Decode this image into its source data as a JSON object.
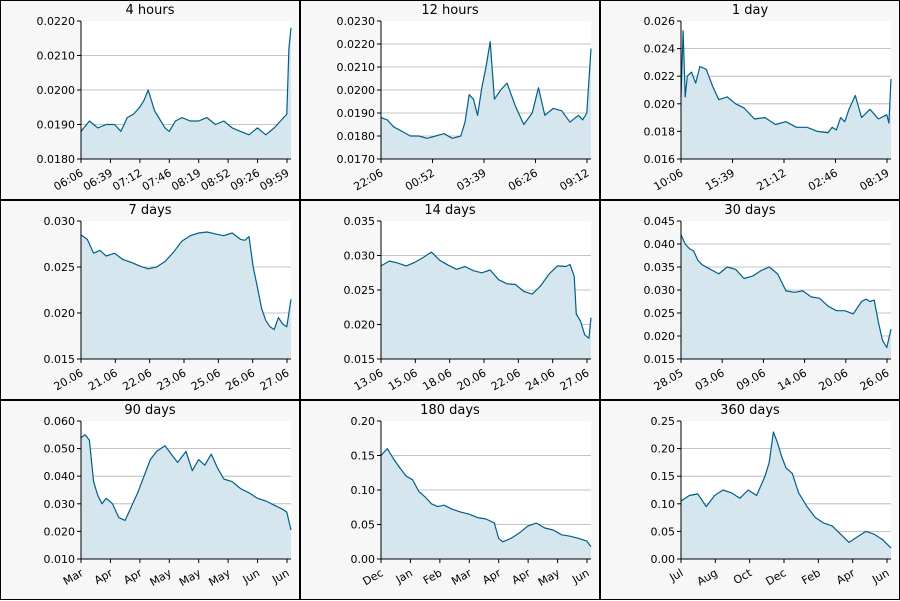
{
  "colors": {
    "line": "#005f87",
    "fill": "#d6e6ee",
    "grid": "#b0b0b0",
    "plot_bg": "#ffffff",
    "panel_bg": "#f7f7f7"
  },
  "chart_data": [
    {
      "type": "area",
      "title": "4 hours",
      "ylim": [
        0.018,
        0.022
      ],
      "yticks": [
        "0.0180",
        "0.0190",
        "0.0200",
        "0.0210",
        "0.0220"
      ],
      "xticks": [
        "06:06",
        "06:39",
        "07:12",
        "07:46",
        "08:19",
        "08:52",
        "09:26",
        "09:59"
      ],
      "x": [
        0,
        4,
        8,
        12,
        16,
        19,
        22,
        25,
        28,
        30,
        32,
        35,
        38,
        40,
        42,
        45,
        48,
        52,
        56,
        60,
        64,
        68,
        72,
        76,
        80,
        84,
        88,
        92,
        95,
        98,
        99,
        100
      ],
      "y": [
        0.0188,
        0.0191,
        0.0189,
        0.019,
        0.019,
        0.0188,
        0.0192,
        0.0193,
        0.0195,
        0.0197,
        0.02,
        0.0194,
        0.0191,
        0.0189,
        0.0188,
        0.0191,
        0.0192,
        0.0191,
        0.0191,
        0.0192,
        0.019,
        0.0191,
        0.0189,
        0.0188,
        0.0187,
        0.0189,
        0.0187,
        0.0189,
        0.0191,
        0.0193,
        0.0212,
        0.0218
      ]
    },
    {
      "type": "area",
      "title": "12 hours",
      "ylim": [
        0.017,
        0.023
      ],
      "yticks": [
        "0.0170",
        "0.0180",
        "0.0190",
        "0.0200",
        "0.0210",
        "0.0220",
        "0.0230"
      ],
      "xticks": [
        "22:06",
        "00:52",
        "03:39",
        "06:26",
        "09:12"
      ],
      "x": [
        0,
        3,
        6,
        10,
        14,
        18,
        22,
        26,
        30,
        34,
        38,
        40,
        42,
        44,
        46,
        48,
        50,
        52,
        54,
        57,
        60,
        64,
        68,
        72,
        75,
        78,
        82,
        86,
        90,
        94,
        96,
        98,
        100
      ],
      "y": [
        0.0188,
        0.0187,
        0.0184,
        0.0182,
        0.018,
        0.018,
        0.0179,
        0.018,
        0.0181,
        0.0179,
        0.018,
        0.0186,
        0.0198,
        0.0196,
        0.0189,
        0.0201,
        0.021,
        0.0221,
        0.0196,
        0.02,
        0.0203,
        0.0193,
        0.0185,
        0.019,
        0.0201,
        0.0189,
        0.0192,
        0.0191,
        0.0186,
        0.0189,
        0.0187,
        0.019,
        0.0218
      ]
    },
    {
      "type": "area",
      "title": "1 day",
      "ylim": [
        0.016,
        0.026
      ],
      "yticks": [
        "0.016",
        "0.018",
        "0.020",
        "0.022",
        "0.024",
        "0.026"
      ],
      "xticks": [
        "10:06",
        "15:39",
        "21:12",
        "02:46",
        "08:19"
      ],
      "x": [
        0,
        1,
        2,
        3,
        5,
        7,
        9,
        12,
        15,
        18,
        22,
        26,
        30,
        35,
        40,
        45,
        50,
        55,
        60,
        65,
        70,
        72,
        74,
        76,
        78,
        80,
        83,
        86,
        90,
        94,
        98,
        99,
        100
      ],
      "y": [
        0.0205,
        0.0253,
        0.0205,
        0.022,
        0.0223,
        0.0215,
        0.0227,
        0.0225,
        0.0213,
        0.0203,
        0.0205,
        0.02,
        0.0197,
        0.0189,
        0.019,
        0.0185,
        0.0187,
        0.0183,
        0.0183,
        0.018,
        0.0179,
        0.0183,
        0.0181,
        0.019,
        0.0187,
        0.0196,
        0.0206,
        0.019,
        0.0196,
        0.0189,
        0.0192,
        0.0186,
        0.0218
      ]
    },
    {
      "type": "area",
      "title": "7 days",
      "ylim": [
        0.015,
        0.03
      ],
      "yticks": [
        "0.015",
        "0.020",
        "0.025",
        "0.030"
      ],
      "xticks": [
        "20.06",
        "21.06",
        "22.06",
        "23.06",
        "25.06",
        "26.06",
        "27.06"
      ],
      "x": [
        0,
        3,
        6,
        9,
        12,
        16,
        20,
        24,
        28,
        32,
        36,
        40,
        44,
        48,
        52,
        56,
        60,
        64,
        68,
        72,
        76,
        78,
        80,
        82,
        84,
        86,
        88,
        90,
        92,
        94,
        96,
        98,
        100
      ],
      "y": [
        0.0285,
        0.028,
        0.0265,
        0.0268,
        0.0262,
        0.0265,
        0.0258,
        0.0255,
        0.0251,
        0.0248,
        0.025,
        0.0256,
        0.0266,
        0.0278,
        0.0284,
        0.0287,
        0.0288,
        0.0286,
        0.0284,
        0.0287,
        0.028,
        0.0279,
        0.0283,
        0.025,
        0.0228,
        0.0205,
        0.0192,
        0.0185,
        0.0182,
        0.0195,
        0.0188,
        0.0185,
        0.0215
      ]
    },
    {
      "type": "area",
      "title": "14 days",
      "ylim": [
        0.015,
        0.035
      ],
      "yticks": [
        "0.015",
        "0.020",
        "0.025",
        "0.030",
        "0.035"
      ],
      "xticks": [
        "13.06",
        "15.06",
        "18.06",
        "20.06",
        "22.06",
        "24.06",
        "27.06"
      ],
      "x": [
        0,
        4,
        8,
        12,
        16,
        20,
        24,
        28,
        32,
        36,
        40,
        44,
        48,
        52,
        56,
        60,
        64,
        68,
        72,
        76,
        80,
        84,
        88,
        90,
        92,
        93,
        95,
        97,
        99,
        100
      ],
      "y": [
        0.0285,
        0.0292,
        0.0289,
        0.0285,
        0.029,
        0.0297,
        0.0305,
        0.0293,
        0.0286,
        0.028,
        0.0284,
        0.0278,
        0.0275,
        0.0279,
        0.0265,
        0.0259,
        0.0258,
        0.0248,
        0.0244,
        0.0256,
        0.0273,
        0.0285,
        0.0284,
        0.0287,
        0.027,
        0.0215,
        0.0205,
        0.0185,
        0.018,
        0.021
      ]
    },
    {
      "type": "area",
      "title": "30 days",
      "ylim": [
        0.015,
        0.045
      ],
      "yticks": [
        "0.015",
        "0.020",
        "0.025",
        "0.030",
        "0.035",
        "0.040",
        "0.045"
      ],
      "xticks": [
        "28.05",
        "03.06",
        "09.06",
        "14.06",
        "20.06",
        "26.06"
      ],
      "x": [
        0,
        2,
        4,
        6,
        8,
        10,
        14,
        18,
        22,
        26,
        30,
        34,
        38,
        42,
        46,
        50,
        54,
        58,
        62,
        66,
        70,
        74,
        78,
        82,
        86,
        88,
        90,
        92,
        94,
        96,
        98,
        100
      ],
      "y": [
        0.042,
        0.04,
        0.039,
        0.0385,
        0.0365,
        0.0355,
        0.0345,
        0.0335,
        0.035,
        0.0345,
        0.0325,
        0.033,
        0.0342,
        0.035,
        0.0335,
        0.0298,
        0.0295,
        0.0298,
        0.0285,
        0.0282,
        0.0265,
        0.0255,
        0.0255,
        0.0248,
        0.0275,
        0.028,
        0.0275,
        0.0278,
        0.023,
        0.019,
        0.0175,
        0.0215
      ]
    },
    {
      "type": "area",
      "title": "90 days",
      "ylim": [
        0.01,
        0.06
      ],
      "yticks": [
        "0.010",
        "0.020",
        "0.030",
        "0.040",
        "0.050",
        "0.060"
      ],
      "xticks": [
        "Mar",
        "Apr",
        "Apr",
        "May",
        "May",
        "May",
        "Jun",
        "Jun"
      ],
      "x": [
        0,
        2,
        4,
        6,
        8,
        10,
        12,
        15,
        18,
        21,
        24,
        27,
        30,
        33,
        36,
        40,
        43,
        46,
        50,
        53,
        56,
        59,
        62,
        65,
        68,
        72,
        76,
        80,
        84,
        88,
        92,
        96,
        98,
        100
      ],
      "y": [
        0.054,
        0.055,
        0.053,
        0.038,
        0.033,
        0.03,
        0.032,
        0.03,
        0.025,
        0.024,
        0.029,
        0.034,
        0.04,
        0.046,
        0.049,
        0.051,
        0.048,
        0.045,
        0.049,
        0.042,
        0.046,
        0.044,
        0.048,
        0.043,
        0.039,
        0.038,
        0.0355,
        0.034,
        0.032,
        0.031,
        0.0295,
        0.028,
        0.027,
        0.0205
      ]
    },
    {
      "type": "area",
      "title": "180 days",
      "ylim": [
        0,
        0.2
      ],
      "yticks": [
        "0.00",
        "0.05",
        "0.10",
        "0.15",
        "0.20"
      ],
      "xticks": [
        "Dec",
        "Jan",
        "Feb",
        "Mar",
        "Apr",
        "Apr",
        "May",
        "Jun"
      ],
      "x": [
        0,
        3,
        6,
        9,
        12,
        15,
        18,
        21,
        24,
        27,
        30,
        34,
        38,
        42,
        46,
        50,
        54,
        56,
        58,
        62,
        66,
        70,
        74,
        78,
        82,
        86,
        90,
        94,
        98,
        100
      ],
      "y": [
        0.15,
        0.16,
        0.145,
        0.132,
        0.12,
        0.115,
        0.098,
        0.09,
        0.08,
        0.076,
        0.078,
        0.072,
        0.068,
        0.065,
        0.06,
        0.058,
        0.052,
        0.03,
        0.025,
        0.03,
        0.038,
        0.048,
        0.052,
        0.045,
        0.042,
        0.035,
        0.033,
        0.03,
        0.026,
        0.018
      ]
    },
    {
      "type": "area",
      "title": "360 days",
      "ylim": [
        0,
        0.25
      ],
      "yticks": [
        "0.00",
        "0.05",
        "0.10",
        "0.15",
        "0.20",
        "0.25"
      ],
      "xticks": [
        "Jul",
        "Aug",
        "Oct",
        "Dec",
        "Feb",
        "Apr",
        "Jun"
      ],
      "x": [
        0,
        4,
        8,
        12,
        16,
        20,
        24,
        28,
        32,
        36,
        40,
        42,
        44,
        46,
        48,
        50,
        53,
        56,
        60,
        64,
        68,
        72,
        76,
        80,
        84,
        88,
        92,
        96,
        100
      ],
      "y": [
        0.105,
        0.115,
        0.118,
        0.095,
        0.115,
        0.125,
        0.12,
        0.11,
        0.125,
        0.115,
        0.15,
        0.175,
        0.23,
        0.21,
        0.185,
        0.165,
        0.155,
        0.12,
        0.095,
        0.075,
        0.065,
        0.06,
        0.045,
        0.03,
        0.04,
        0.05,
        0.045,
        0.035,
        0.02
      ]
    }
  ]
}
